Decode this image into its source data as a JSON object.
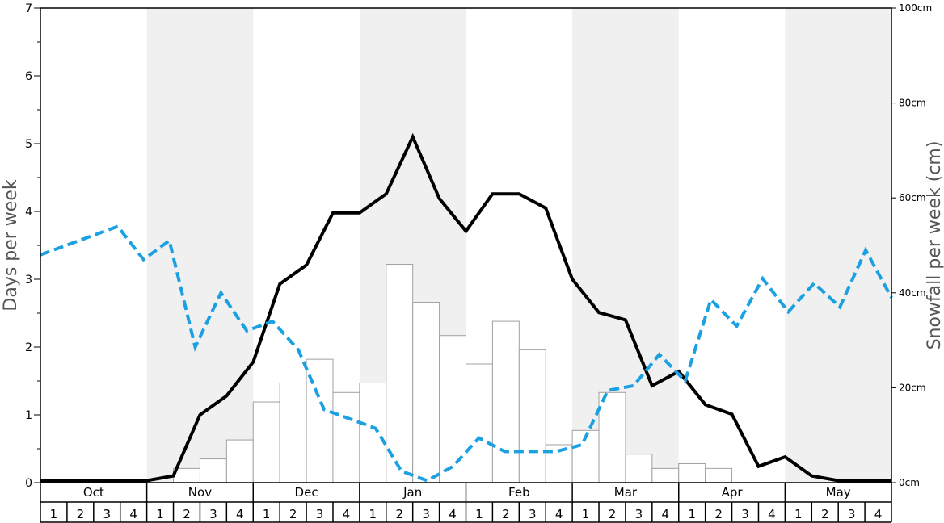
{
  "chart_data": {
    "type": "bar",
    "title": "",
    "ylabel_left": "Days per week",
    "ylabel_right": "Snowfall per week (cm)",
    "ylim_left": [
      0,
      7
    ],
    "ylim_right": [
      0,
      100
    ],
    "yticks_left": [
      "0",
      "1",
      "2",
      "3",
      "4",
      "5",
      "6",
      "7"
    ],
    "yticks_right": [
      "0cm",
      "20cm",
      "40cm",
      "60cm",
      "80cm",
      "100cm"
    ],
    "yticks_right_values": [
      0,
      20,
      40,
      60,
      80,
      100
    ],
    "months": [
      "Oct",
      "Nov",
      "Dec",
      "Jan",
      "Feb",
      "Mar",
      "Apr",
      "May"
    ],
    "week_labels": [
      "1",
      "2",
      "3",
      "4"
    ],
    "shaded_months": [
      "Nov",
      "Jan",
      "Mar",
      "May"
    ],
    "colors": {
      "bars_fill": "#ffffff",
      "bars_stroke": "#a0a0a0",
      "solid_line": "#000000",
      "dashed_line": "#1ba1e2",
      "shade": "#f0f0f0"
    },
    "series": [
      {
        "type": "bar",
        "axis": "right",
        "values": [
          0,
          0,
          0,
          0,
          0,
          3,
          5,
          9,
          17,
          21,
          26,
          19,
          21,
          46,
          38,
          31,
          25,
          34,
          28,
          8,
          11,
          19,
          6,
          3,
          4,
          3,
          0,
          0,
          0,
          0,
          0,
          0
        ]
      },
      {
        "type": "line",
        "style": "solid",
        "axis": "left",
        "values": [
          0.03,
          0.03,
          0.03,
          0.03,
          0.03,
          0.1,
          1.0,
          1.28,
          1.78,
          2.93,
          3.21,
          3.98,
          3.98,
          4.26,
          5.1,
          4.19,
          3.71,
          4.26,
          4.26,
          4.05,
          3.0,
          2.51,
          2.4,
          1.43,
          1.64,
          1.15,
          1.01,
          0.24,
          0.38,
          0.1,
          0.03,
          0.03,
          0.03
        ]
      },
      {
        "type": "line",
        "style": "dashed",
        "axis": "left",
        "values": [
          3.36,
          3.5,
          3.64,
          3.78,
          3.29,
          3.57,
          2.0,
          2.8,
          2.24,
          2.38,
          1.96,
          1.08,
          0.94,
          0.8,
          0.17,
          0.03,
          0.24,
          0.66,
          0.46,
          0.46,
          0.46,
          0.56,
          1.36,
          1.43,
          1.89,
          1.5,
          2.7,
          2.31,
          3.01,
          2.52,
          2.94,
          2.59,
          3.43,
          2.73
        ]
      }
    ]
  }
}
